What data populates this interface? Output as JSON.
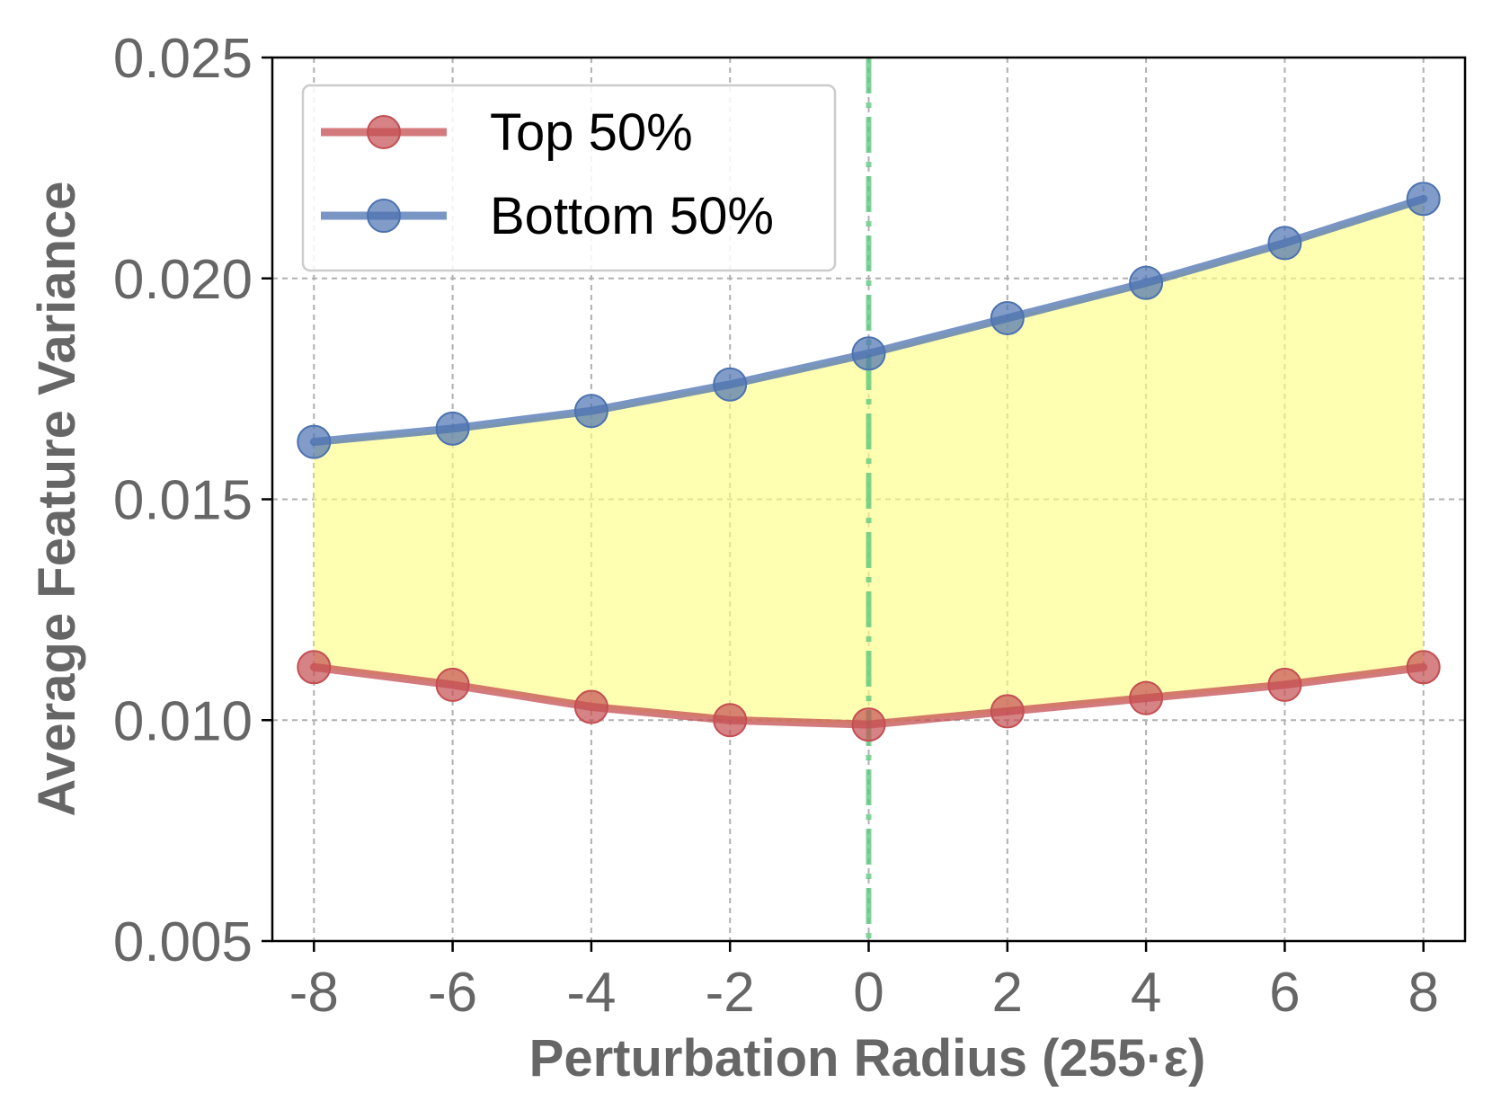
{
  "chart_data": {
    "type": "line",
    "x": [
      -8,
      -6,
      -4,
      -2,
      0,
      2,
      4,
      6,
      8
    ],
    "series": [
      {
        "name": "Top 50%",
        "values": [
          0.0112,
          0.0108,
          0.0103,
          0.01,
          0.0099,
          0.0102,
          0.0105,
          0.0108,
          0.0112
        ],
        "color": "#c44e52"
      },
      {
        "name": "Bottom 50%",
        "values": [
          0.0163,
          0.0166,
          0.017,
          0.0176,
          0.0183,
          0.0191,
          0.0199,
          0.0208,
          0.0218
        ],
        "color": "#4c72b0"
      }
    ],
    "fill_between": {
      "color": "#ffff88",
      "between": [
        "Top 50%",
        "Bottom 50%"
      ]
    },
    "vertical_line": {
      "x": 0,
      "color": "#55c57a",
      "style": "dash-dot"
    },
    "xlabel": "Perturbation Radius (255·ε)",
    "ylabel": "Average Feature Variance",
    "xticks": [
      "-8",
      "-6",
      "-4",
      "-2",
      "0",
      "2",
      "4",
      "6",
      "8"
    ],
    "yticks": [
      "0.005",
      "0.010",
      "0.015",
      "0.020",
      "0.025"
    ],
    "xlim": [
      -8.6,
      8.6
    ],
    "ylim": [
      0.005,
      0.025
    ],
    "grid": true,
    "legend_position": "top-left"
  }
}
